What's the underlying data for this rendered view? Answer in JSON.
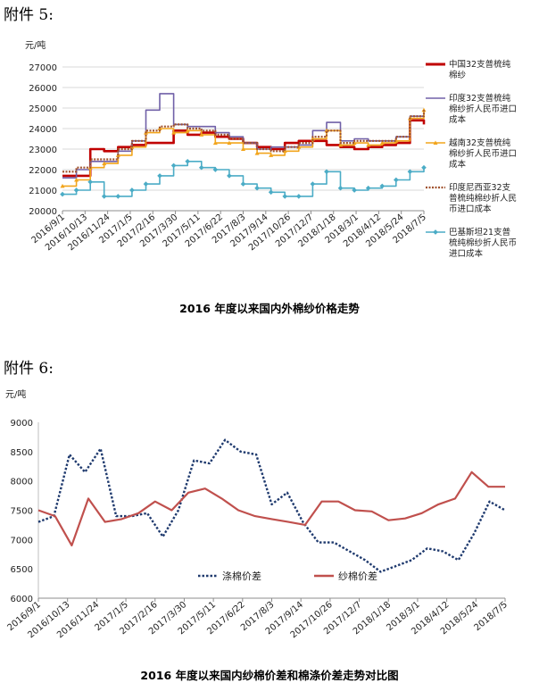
{
  "sections": [
    {
      "heading": "附件 5:",
      "caption": "2016 年度以来国内外棉纱价格走势"
    },
    {
      "heading": "附件 6:",
      "caption": "2016 年度以来国内纱棉价差和棉涤价差走势对比图"
    }
  ],
  "chart_data": [
    {
      "type": "line",
      "unit_label": "元/吨",
      "x_tick_labels": [
        "2016/9/1",
        "2016/10/13",
        "2016/11/24",
        "2017/1/5",
        "2017/2/16",
        "2017/3/30",
        "2017/5/11",
        "2017/6/22",
        "2017/8/3",
        "2017/9/14",
        "2017/10/26",
        "2017/12/7",
        "2018/1/18",
        "2018/3/1",
        "2018/4/12",
        "2018/5/24",
        "2018/7/5"
      ],
      "y_ticks": [
        20000,
        21000,
        22000,
        23000,
        24000,
        25000,
        26000,
        27000
      ],
      "ylim": [
        20000,
        27000
      ],
      "grid": true,
      "legend_position": "right",
      "series": [
        {
          "name": "中国32支普梳纯棉纱",
          "color": "#c00000",
          "style": "solid",
          "values": [
            21700,
            21700,
            23000,
            22900,
            23100,
            23200,
            23300,
            23300,
            23900,
            23700,
            23800,
            23600,
            23500,
            23300,
            23100,
            23000,
            23300,
            23400,
            23400,
            23200,
            23100,
            23000,
            23100,
            23200,
            23300,
            24400,
            24200
          ]
        },
        {
          "name": "印度32支普梳纯棉纱折人民币进口成本",
          "color": "#7060a8",
          "style": "solid",
          "values": [
            21600,
            22000,
            22400,
            22400,
            22900,
            23400,
            24900,
            25700,
            24200,
            24100,
            24100,
            23800,
            23600,
            23300,
            23000,
            23100,
            23100,
            23200,
            23900,
            24300,
            23400,
            23500,
            23400,
            23400,
            23600,
            24600,
            24900
          ]
        },
        {
          "name": "越南32支普梳纯棉纱折人民币进口成本",
          "color": "#f2a51c",
          "style": "solid",
          "marker": "triangle",
          "values": [
            21200,
            21500,
            22100,
            22300,
            22700,
            23100,
            23800,
            24000,
            23800,
            23900,
            23700,
            23300,
            23300,
            23000,
            22800,
            22700,
            22900,
            23100,
            23500,
            23900,
            23200,
            23300,
            23200,
            23300,
            23400,
            24500,
            24900
          ]
        },
        {
          "name": "印度尼西亚32支普梳纯棉纱折人民币进口成本",
          "color": "#a0522d",
          "style": "dotted",
          "values": [
            21900,
            22100,
            22500,
            22500,
            23000,
            23400,
            23900,
            24100,
            24200,
            24000,
            23900,
            23700,
            23500,
            23300,
            23000,
            22900,
            23100,
            23300,
            23600,
            23900,
            23300,
            23400,
            23400,
            23400,
            23600,
            24600,
            24900
          ]
        },
        {
          "name": "巴基斯坦21支普梳纯棉纱折人民币进口成本",
          "color": "#4bacc6",
          "style": "solid",
          "marker": "diamond",
          "values": [
            20800,
            21000,
            21400,
            20700,
            20700,
            21000,
            21300,
            21700,
            22200,
            22400,
            22100,
            22000,
            21700,
            21300,
            21100,
            20900,
            20700,
            20700,
            21300,
            21900,
            21100,
            21000,
            21100,
            21200,
            21500,
            21900,
            22100
          ]
        }
      ]
    },
    {
      "type": "line",
      "unit_label": "元/吨",
      "x_tick_labels": [
        "2016/9/1",
        "2016/10/13",
        "2016/11/24",
        "2017/1/5",
        "2017/2/16",
        "2017/3/30",
        "2017/5/11",
        "2017/6/22",
        "2017/8/3",
        "2017/9/14",
        "2017/10/26",
        "2017/12/7",
        "2018/1/18",
        "2018/3/1",
        "2018/4/12",
        "2018/5/24",
        "2018/7/5"
      ],
      "y_ticks": [
        6000,
        6500,
        7000,
        7500,
        8000,
        8500,
        9000
      ],
      "ylim": [
        6000,
        9000
      ],
      "grid": false,
      "legend_position": "bottom-center",
      "series": [
        {
          "name": "涤棉价差",
          "color": "#1f3a6e",
          "style": "dotted",
          "values": [
            7300,
            7400,
            8450,
            8150,
            8550,
            7400,
            7400,
            7450,
            7050,
            7500,
            8350,
            8300,
            8700,
            8500,
            8450,
            7600,
            7800,
            7300,
            6950,
            6950,
            6800,
            6650,
            6450,
            6550,
            6650,
            6850,
            6800,
            6650,
            7100,
            7650,
            7500
          ]
        },
        {
          "name": "纱棉价差",
          "color": "#c0504d",
          "style": "solid",
          "values": [
            7500,
            7400,
            6900,
            7700,
            7300,
            7350,
            7450,
            7650,
            7500,
            7800,
            7870,
            7700,
            7500,
            7400,
            7350,
            7300,
            7250,
            7650,
            7650,
            7500,
            7480,
            7330,
            7360,
            7450,
            7600,
            7700,
            8150,
            7900,
            7900
          ]
        }
      ]
    }
  ]
}
